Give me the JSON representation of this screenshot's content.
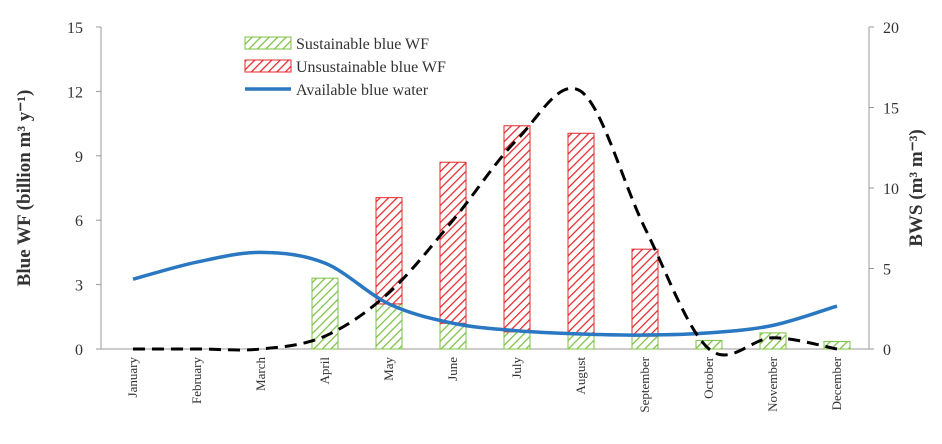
{
  "chart_data": {
    "type": "bar",
    "y_label": "Blue WF (billion m³ y⁻¹)",
    "y2_label": "BWS (m³ m⁻³)",
    "categories": [
      "January",
      "February",
      "March",
      "April",
      "May",
      "June",
      "July",
      "August",
      "September",
      "October",
      "November",
      "December"
    ],
    "series": [
      {
        "name": "Sustainable blue WF",
        "type": "bar",
        "color": "#7cc142",
        "values": [
          0,
          0,
          0,
          3.3,
          2.1,
          1.2,
          0.8,
          0.7,
          0.6,
          0.4,
          0.75,
          0.35
        ]
      },
      {
        "name": "Unsustainable blue WF",
        "type": "bar",
        "color": "#e5262b",
        "values": [
          0,
          0,
          0,
          0,
          4.95,
          7.5,
          9.6,
          9.35,
          4.05,
          0,
          0,
          0
        ]
      },
      {
        "name": "Available blue water",
        "type": "line",
        "color": "#2a78c2",
        "values": [
          3.25,
          4.05,
          4.5,
          4.0,
          2.1,
          1.2,
          0.85,
          0.7,
          0.65,
          0.75,
          1.1,
          2.0
        ]
      },
      {
        "type": "dashed",
        "axis": "y2",
        "color": "#000000",
        "values": [
          0,
          0,
          0,
          0.8,
          3.5,
          8,
          13,
          16,
          7.5,
          0,
          0.7,
          0
        ]
      }
    ],
    "ylim": [
      0,
      15
    ],
    "yticks": [
      0,
      3,
      6,
      9,
      12,
      15
    ],
    "y2lim": [
      0,
      20
    ],
    "y2ticks": [
      0,
      5,
      10,
      15,
      20
    ]
  }
}
